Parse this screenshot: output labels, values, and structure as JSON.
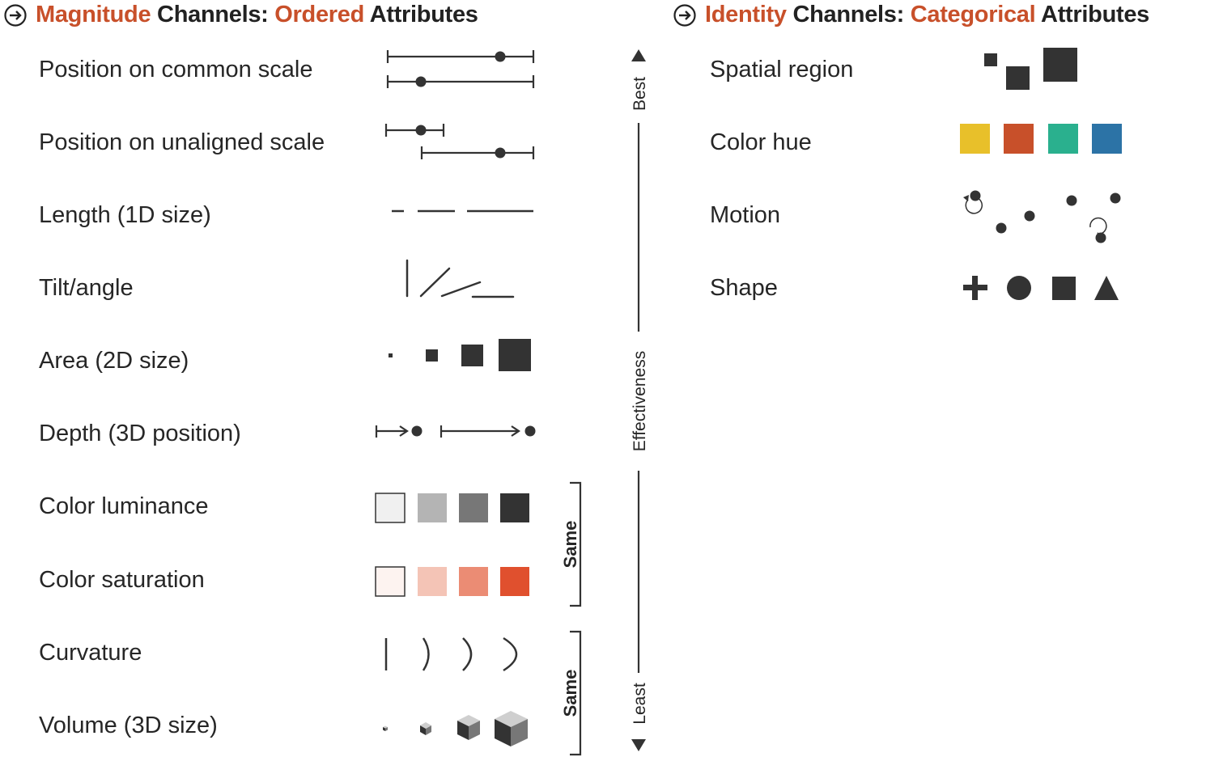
{
  "colors": {
    "accent": "#c8502a",
    "ink": "#333333",
    "hue_yellow": "#e8c02a",
    "hue_red": "#c8502a",
    "hue_teal": "#2ab08e",
    "hue_blue": "#2c73a6"
  },
  "magnitude": {
    "heading": {
      "icon": "circle-arrow-right-icon",
      "word1_accent": "Magnitude",
      "middle": " Channels: ",
      "word2_accent": "Ordered",
      "tail": " Attributes"
    },
    "channels": [
      "Position on common scale",
      "Position on unaligned scale",
      "Length (1D size)",
      "Tilt/angle",
      "Area (2D size)",
      "Depth (3D position)",
      "Color luminance",
      "Color saturation",
      "Curvature",
      "Volume (3D size)"
    ],
    "luminance_swatches": [
      "#f0f0f0",
      "#b4b4b4",
      "#777777",
      "#333333"
    ],
    "saturation_swatches": [
      "#fdf3f0",
      "#f4c4b6",
      "#eb8c74",
      "#e0502e"
    ]
  },
  "identity": {
    "heading": {
      "icon": "circle-arrow-right-icon",
      "word1_accent": "Identity",
      "middle": " Channels: ",
      "word2_accent": "Categorical",
      "tail": " Attributes"
    },
    "channels": [
      "Spatial region",
      "Color hue",
      "Motion",
      "Shape"
    ]
  },
  "effectiveness": {
    "top_label": "Best",
    "middle_label": "Effectiveness",
    "bottom_label": "Least",
    "bracket_label_1": "Same",
    "bracket_label_2": "Same"
  }
}
